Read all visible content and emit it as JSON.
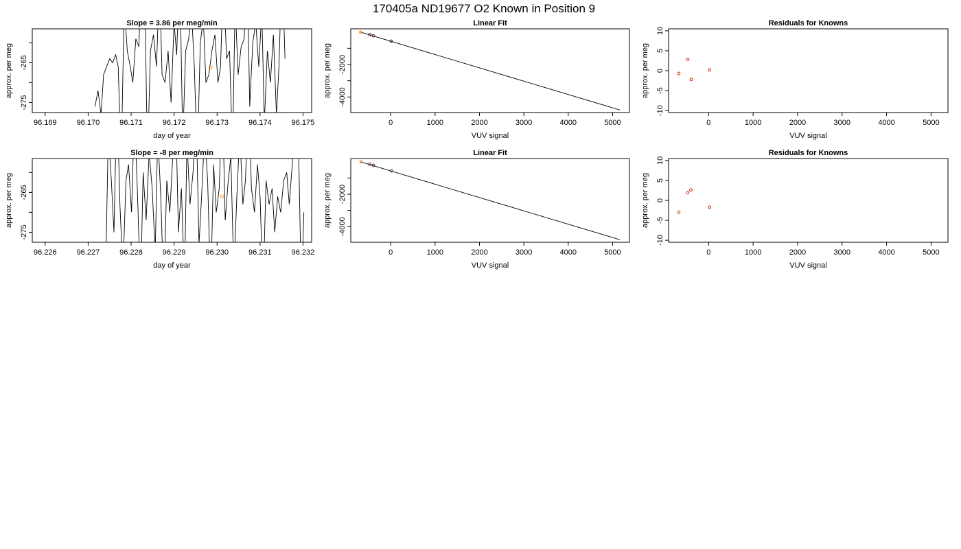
{
  "figure_title": "170405a     ND19677   O2 Known in Position  9",
  "colors": {
    "line": "#000000",
    "marker_known": "#ff8c00",
    "marker_residual": "#cc2200",
    "text": "#000000"
  },
  "chart_data": [
    {
      "id": "p11",
      "type": "line",
      "title": "Slope =  3.86  per meg/min",
      "xlabel": "day of year",
      "ylabel": "approx. per meg",
      "xlim": [
        96.1687,
        96.1752
      ],
      "ylim": [
        -277.5,
        -256.5
      ],
      "xticks": [
        96.169,
        96.17,
        96.171,
        96.172,
        96.173,
        96.174,
        96.175
      ],
      "xtick_labels": [
        "96.169",
        "96.170",
        "96.171",
        "96.172",
        "96.173",
        "96.174",
        "96.175"
      ],
      "yticks": [
        -275,
        -270,
        -265,
        -260
      ],
      "ytick_labels": [
        "-275",
        "",
        "-265",
        ""
      ],
      "series": [
        {
          "x": [
            96.17016,
            96.17023,
            96.1703,
            96.17036,
            96.17043,
            96.1705,
            96.17057,
            96.17064,
            96.1707,
            96.17077,
            96.17084,
            96.17091,
            96.17098,
            96.17104,
            96.17111,
            96.17118,
            96.17125,
            96.17132,
            96.17138,
            96.17145,
            96.17152,
            96.17159,
            96.17166,
            96.17172,
            96.17179,
            96.17186,
            96.17193,
            96.172,
            96.17206,
            96.17213,
            96.1722,
            96.17227,
            96.17234,
            96.1724,
            96.17247,
            96.17254,
            96.17261,
            96.17268,
            96.17274,
            96.17281,
            96.17288,
            96.17295,
            96.17302,
            96.17308,
            96.17315,
            96.17322,
            96.17329,
            96.17336,
            96.17342,
            96.17349,
            96.17356,
            96.17363,
            96.1737,
            96.17376,
            96.17383,
            96.1739,
            96.17397,
            96.17404,
            96.1741,
            96.17417,
            96.17424,
            96.17431,
            96.17438,
            96.17444,
            96.17451,
            96.17458
          ],
          "y": [
            -276,
            -272,
            -278,
            -268,
            -266,
            -264,
            -265,
            -263,
            -266,
            -290,
            -250,
            -262,
            -266,
            -270,
            -259,
            -261,
            -240,
            -248,
            -290,
            -262,
            -258,
            -266,
            -244,
            -268,
            -270,
            -262,
            -275,
            -255,
            -263,
            -240,
            -285,
            -262,
            -259,
            -251,
            -266,
            -290,
            -260,
            -254,
            -270,
            -268,
            -262,
            -258,
            -270,
            -266,
            -242,
            -264,
            -262,
            -288,
            -250,
            -268,
            -261,
            -259,
            -240,
            -276,
            -260,
            -255,
            -266,
            -252,
            -280,
            -262,
            -270,
            -258,
            -278,
            -266,
            -240,
            -264
          ]
        }
      ],
      "known_point": {
        "x": 96.17285,
        "y": -266.2
      }
    },
    {
      "id": "p12",
      "type": "scatter",
      "title": "Linear Fit",
      "xlabel": "VUV signal",
      "ylabel": "approx. per meg",
      "xlim": [
        -900,
        5380
      ],
      "ylim": [
        -4960,
        200
      ],
      "xticks": [
        0,
        1000,
        2000,
        3000,
        4000,
        5000
      ],
      "xtick_labels": [
        "0",
        "1000",
        "2000",
        "3000",
        "4000",
        "5000"
      ],
      "yticks": [
        -4000,
        -3000,
        -2000,
        -1000
      ],
      "ytick_labels": [
        "-4000",
        "",
        "-2000",
        ""
      ],
      "fit_line": {
        "x": [
          -680,
          5160
        ],
        "y": [
          -5,
          -4800
        ]
      },
      "points": {
        "x": [
          -680,
          -470,
          -390,
          10
        ],
        "y": [
          -5,
          -160,
          -230,
          -560
        ]
      },
      "known_index": 0
    },
    {
      "id": "p13",
      "type": "scatter",
      "title": "Residuals for Knowns",
      "xlabel": "VUV signal",
      "ylabel": "approx. per meg",
      "xlim": [
        -900,
        5380
      ],
      "ylim": [
        -10.5,
        10.5
      ],
      "xticks": [
        0,
        1000,
        2000,
        3000,
        4000,
        5000
      ],
      "xtick_labels": [
        "0",
        "1000",
        "2000",
        "3000",
        "4000",
        "5000"
      ],
      "yticks": [
        -10,
        -5,
        0,
        5,
        10
      ],
      "ytick_labels": [
        "-10",
        "-5",
        "0",
        "5",
        "10"
      ],
      "points": {
        "x": [
          -670,
          -470,
          -390,
          20
        ],
        "y": [
          -0.7,
          2.8,
          -2.2,
          0.2
        ]
      }
    },
    {
      "id": "p21",
      "type": "line",
      "title": "Slope =  -8  per meg/min",
      "xlabel": "day of year",
      "ylabel": "approx. per meg",
      "xlim": [
        96.2257,
        96.2322
      ],
      "ylim": [
        -277.5,
        -256.5
      ],
      "xticks": [
        96.226,
        96.227,
        96.228,
        96.229,
        96.23,
        96.231,
        96.232
      ],
      "xtick_labels": [
        "96.226",
        "96.227",
        "96.228",
        "96.229",
        "96.230",
        "96.231",
        "96.232"
      ],
      "yticks": [
        -275,
        -270,
        -265,
        -260
      ],
      "ytick_labels": [
        "-275",
        "",
        "-265",
        ""
      ],
      "series": [
        {
          "x": [
            96.2274,
            96.22747,
            96.22754,
            96.2276,
            96.22767,
            96.22774,
            96.22781,
            96.22788,
            96.22794,
            96.22801,
            96.22808,
            96.22815,
            96.22822,
            96.22828,
            96.22835,
            96.22842,
            96.22849,
            96.22856,
            96.22862,
            96.22869,
            96.22876,
            96.22883,
            96.2289,
            96.22896,
            96.22903,
            96.2291,
            96.22917,
            96.22924,
            96.2293,
            96.22937,
            96.22944,
            96.22951,
            96.22958,
            96.22964,
            96.22971,
            96.22978,
            96.22985,
            96.22992,
            96.22998,
            96.23005,
            96.23012,
            96.23019,
            96.23026,
            96.23032,
            96.23039,
            96.23046,
            96.23053,
            96.2306,
            96.23066,
            96.23073,
            96.2308,
            96.23087,
            96.23094,
            96.231,
            96.23107,
            96.23114,
            96.23121,
            96.23128,
            96.23134,
            96.23141,
            96.23148,
            96.23155,
            96.23162,
            96.23168,
            96.23175,
            96.23182,
            96.23189,
            96.23196,
            96.23202
          ],
          "y": [
            -290,
            -250,
            -262,
            -275,
            -240,
            -268,
            -285,
            -262,
            -258,
            -270,
            -244,
            -266,
            -290,
            -260,
            -272,
            -255,
            -264,
            -280,
            -250,
            -266,
            -290,
            -262,
            -270,
            -258,
            -240,
            -275,
            -264,
            -288,
            -252,
            -268,
            -260,
            -244,
            -278,
            -266,
            -250,
            -262,
            -290,
            -258,
            -270,
            -264,
            -240,
            -272,
            -262,
            -256,
            -286,
            -266,
            -250,
            -268,
            -262,
            -240,
            -264,
            -270,
            -258,
            -266,
            -290,
            -262,
            -268,
            -264,
            -275,
            -266,
            -270,
            -262,
            -260,
            -268,
            -258,
            -240,
            -250,
            -290,
            -270
          ]
        }
      ],
      "known_point": {
        "x": 96.23012,
        "y": -266.0
      }
    },
    {
      "id": "p22",
      "type": "scatter",
      "title": "Linear Fit",
      "xlabel": "VUV signal",
      "ylabel": "approx. per meg",
      "xlim": [
        -900,
        5380
      ],
      "ylim": [
        -4960,
        200
      ],
      "xticks": [
        0,
        1000,
        2000,
        3000,
        4000,
        5000
      ],
      "xtick_labels": [
        "0",
        "1000",
        "2000",
        "3000",
        "4000",
        "5000"
      ],
      "yticks": [
        -4000,
        -3000,
        -2000,
        -1000
      ],
      "ytick_labels": [
        "-4000",
        "",
        "-2000",
        ""
      ],
      "fit_line": {
        "x": [
          -680,
          5160
        ],
        "y": [
          -5,
          -4800
        ]
      },
      "points": {
        "x": [
          -670,
          -470,
          -390,
          20
        ],
        "y": [
          0,
          -150,
          -220,
          -560
        ]
      },
      "known_index": 0
    },
    {
      "id": "p23",
      "type": "scatter",
      "title": "Residuals for Knowns",
      "xlabel": "VUV signal",
      "ylabel": "approx. per meg",
      "xlim": [
        -900,
        5380
      ],
      "ylim": [
        -10.5,
        10.5
      ],
      "xticks": [
        0,
        1000,
        2000,
        3000,
        4000,
        5000
      ],
      "xtick_labels": [
        "0",
        "1000",
        "2000",
        "3000",
        "4000",
        "5000"
      ],
      "yticks": [
        -10,
        -5,
        0,
        5,
        10
      ],
      "ytick_labels": [
        "-10",
        "-5",
        "0",
        "5",
        "10"
      ],
      "points": {
        "x": [
          -670,
          -470,
          -400,
          20
        ],
        "y": [
          -3.0,
          1.9,
          2.6,
          -1.7
        ]
      }
    }
  ]
}
